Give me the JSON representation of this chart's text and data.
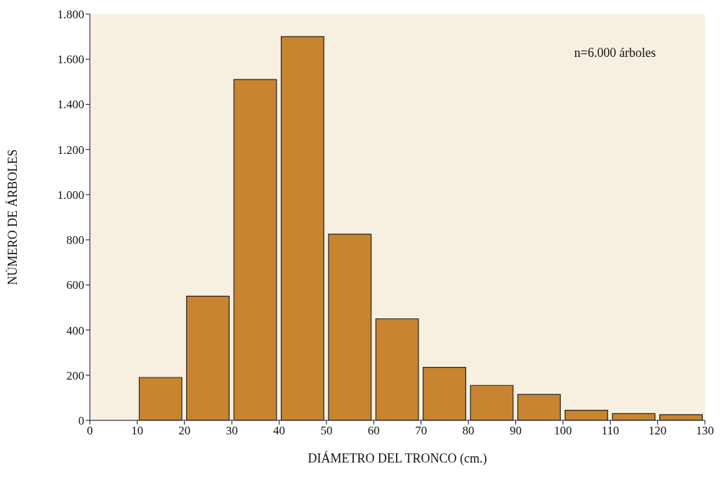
{
  "chart_data": {
    "type": "histogram",
    "xlabel": "DIÁMETRO DEL TRONCO (cm.)",
    "ylabel": "NÚMERO DE ÁRBOLES",
    "bins": [
      0,
      10,
      20,
      30,
      40,
      50,
      60,
      70,
      80,
      90,
      100,
      110,
      120,
      130
    ],
    "values": [
      0,
      190,
      550,
      1510,
      1700,
      825,
      450,
      235,
      155,
      115,
      45,
      30,
      25
    ],
    "color": "#c8842e",
    "xlim": [
      0,
      130
    ],
    "xticks": [
      0,
      10,
      20,
      30,
      40,
      50,
      60,
      70,
      80,
      90,
      100,
      110,
      120,
      130
    ],
    "ylim": [
      0,
      1800
    ],
    "yticks": [
      0,
      200,
      400,
      600,
      800,
      {
        "value": 1000,
        "label": "1.000"
      },
      {
        "value": 1200,
        "label": "1.200"
      },
      {
        "value": 1400,
        "label": "1.400"
      },
      {
        "value": 1600,
        "label": "1.600"
      },
      {
        "value": 1800,
        "label": "1.800"
      }
    ],
    "grid": false,
    "annotations": [
      "n=6.000 árboles"
    ]
  }
}
